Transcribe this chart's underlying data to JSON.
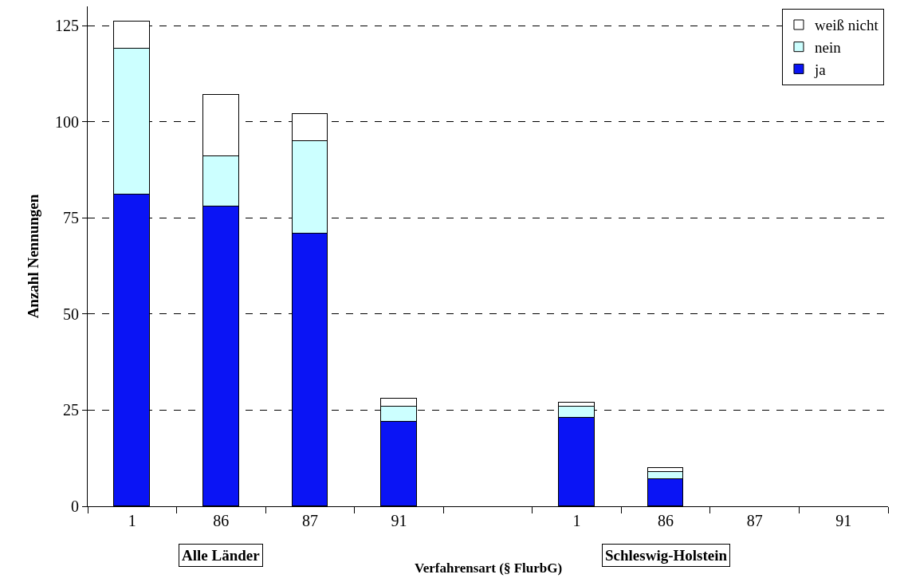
{
  "chart_data": {
    "type": "bar",
    "stacked": true,
    "xlabel": "Verfahrensart (§ FlurbG)",
    "ylabel": "Anzahl Nennungen",
    "categories": [
      "1",
      "86",
      "87",
      "91",
      null,
      "1",
      "86",
      "87",
      "91"
    ],
    "series": [
      {
        "name": "ja",
        "color": "#0a14f5",
        "values": [
          81,
          78,
          71,
          22,
          null,
          23,
          7,
          null,
          null
        ]
      },
      {
        "name": "nein",
        "color": "#ccffff",
        "values": [
          38,
          13,
          24,
          4,
          null,
          3,
          2,
          null,
          null
        ]
      },
      {
        "name": "weiß nicht",
        "color": "#ffffff",
        "values": [
          7,
          16,
          7,
          2,
          null,
          1,
          1,
          null,
          null
        ]
      }
    ],
    "annotations": [
      "Alle Länder",
      "Schleswig-Holstein"
    ],
    "ylim": [
      0,
      130
    ],
    "yticks": [
      0,
      25,
      50,
      75,
      100,
      125
    ],
    "grid": "y",
    "legend": "top right"
  }
}
